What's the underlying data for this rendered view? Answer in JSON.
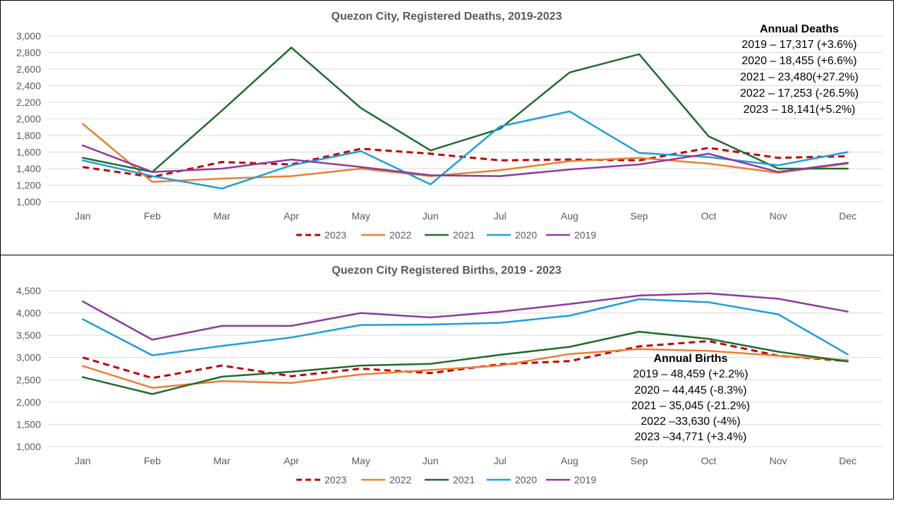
{
  "chart_data": [
    {
      "type": "line",
      "title": "Quezon City, Registered Deaths, 2019-2023",
      "xlabel": "",
      "ylabel": "",
      "ylim": [
        1000,
        3000
      ],
      "ytick_step": 200,
      "grid": true,
      "legend_position": "bottom",
      "categories": [
        "Jan",
        "Feb",
        "Mar",
        "Apr",
        "May",
        "Jun",
        "Jul",
        "Aug",
        "Sep",
        "Oct",
        "Nov",
        "Dec"
      ],
      "series": [
        {
          "name": "2023",
          "color": "#C00000",
          "dashed": true,
          "values": [
            1420,
            1300,
            1480,
            1450,
            1640,
            1580,
            1500,
            1510,
            1500,
            1650,
            1530,
            1550
          ]
        },
        {
          "name": "2022",
          "color": "#ED7D31",
          "dashed": false,
          "values": [
            1940,
            1240,
            1280,
            1310,
            1400,
            1310,
            1380,
            1490,
            1530,
            1460,
            1350,
            1460
          ]
        },
        {
          "name": "2021",
          "color": "#1E6B2E",
          "dashed": false,
          "values": [
            1530,
            1360,
            2100,
            2860,
            2130,
            1620,
            1880,
            2560,
            2780,
            1790,
            1400,
            1400
          ]
        },
        {
          "name": "2020",
          "color": "#1F9ED8",
          "dashed": false,
          "values": [
            1500,
            1310,
            1160,
            1440,
            1610,
            1210,
            1910,
            2090,
            1590,
            1540,
            1440,
            1600
          ]
        },
        {
          "name": "2019",
          "color": "#8E3A9E",
          "dashed": false,
          "values": [
            1680,
            1360,
            1400,
            1510,
            1420,
            1320,
            1310,
            1390,
            1450,
            1580,
            1360,
            1470
          ]
        }
      ],
      "annotation": {
        "heading": "Annual Deaths",
        "lines": [
          "2019 – 17,317 (+3.6%)",
          "2020 – 18,455 (+6.6%)",
          "2021 – 23,480(+27.2%)",
          "2022 – 17,253 (-26.5%)",
          "2023 – 18,141(+5.2%)"
        ]
      }
    },
    {
      "type": "line",
      "title": "Quezon City Registered Births, 2019 - 2023",
      "xlabel": "",
      "ylabel": "",
      "ylim": [
        1000,
        4500
      ],
      "ytick_step": 500,
      "grid": true,
      "legend_position": "bottom",
      "categories": [
        "Jan",
        "Feb",
        "Mar",
        "Apr",
        "May",
        "Jun",
        "Jul",
        "Aug",
        "Sep",
        "Oct",
        "Nov",
        "Dec"
      ],
      "series": [
        {
          "name": "2023",
          "color": "#C00000",
          "dashed": true,
          "values": [
            3000,
            2540,
            2820,
            2580,
            2750,
            2650,
            2850,
            2920,
            3250,
            3370,
            3040,
            2920
          ]
        },
        {
          "name": "2022",
          "color": "#ED7D31",
          "dashed": false,
          "values": [
            2810,
            2320,
            2470,
            2430,
            2620,
            2720,
            2820,
            3080,
            3190,
            3150,
            3040,
            2940
          ]
        },
        {
          "name": "2021",
          "color": "#1E6B2E",
          "dashed": false,
          "values": [
            2560,
            2180,
            2570,
            2680,
            2820,
            2860,
            3060,
            3240,
            3580,
            3420,
            3130,
            2910
          ]
        },
        {
          "name": "2020",
          "color": "#1F9ED8",
          "dashed": false,
          "values": [
            3860,
            3050,
            3260,
            3450,
            3730,
            3740,
            3780,
            3940,
            4310,
            4240,
            3970,
            3070
          ]
        },
        {
          "name": "2019",
          "color": "#8E3A9E",
          "dashed": false,
          "values": [
            4260,
            3400,
            3710,
            3710,
            4000,
            3900,
            4030,
            4200,
            4390,
            4440,
            4320,
            4030
          ]
        }
      ],
      "annotation": {
        "heading": "Annual Births",
        "lines": [
          "2019 – 48,459 (+2.2%)",
          "2020 – 44,445 (-8.3%)",
          "2021 – 35,045 (-21.2%)",
          "2022 –33,630 (-4%)",
          "2023 –34,771 (+3.4%)"
        ]
      }
    }
  ]
}
